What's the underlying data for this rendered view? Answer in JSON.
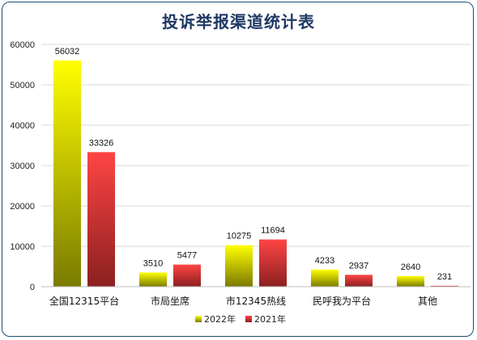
{
  "chart_data": {
    "type": "bar",
    "title": "投诉举报渠道统计表",
    "categories": [
      "全国12315平台",
      "市局坐席",
      "市12345热线",
      "民呼我为平台",
      "其他"
    ],
    "series": [
      {
        "name": "2022年",
        "values": [
          56032,
          3510,
          10275,
          4233,
          2640
        ],
        "color_top": "#ffff00",
        "color_bottom": "#7a7a00"
      },
      {
        "name": "2021年",
        "values": [
          33326,
          5477,
          11694,
          2937,
          231
        ],
        "color_top": "#ff4444",
        "color_bottom": "#8b2020"
      }
    ],
    "ylim": [
      0,
      60000
    ],
    "yticks": [
      "0",
      "10000",
      "20000",
      "30000",
      "40000",
      "50000",
      "60000"
    ],
    "grid": true,
    "legend_position": "bottom"
  }
}
